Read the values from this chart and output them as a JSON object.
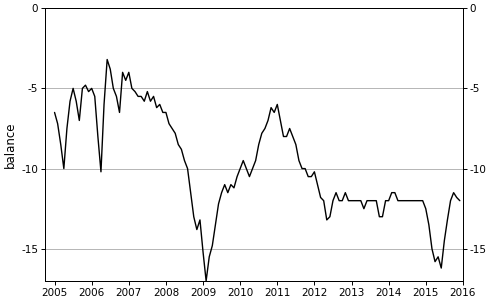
{
  "title": "",
  "ylabel_left": "balance",
  "ylim": [
    -17,
    0
  ],
  "yticks": [
    0,
    -5,
    -10,
    -15
  ],
  "xlim_start": 2004.75,
  "xlim_end": 2016.0,
  "xticks": [
    2005,
    2006,
    2007,
    2008,
    2009,
    2010,
    2011,
    2012,
    2013,
    2014,
    2015,
    2016
  ],
  "line_color": "#000000",
  "line_width": 1.0,
  "bg_color": "#ffffff",
  "grid_color": "#aaaaaa",
  "dates": [
    2005.0,
    2005.083,
    2005.167,
    2005.25,
    2005.333,
    2005.417,
    2005.5,
    2005.583,
    2005.667,
    2005.75,
    2005.833,
    2005.917,
    2006.0,
    2006.083,
    2006.167,
    2006.25,
    2006.333,
    2006.417,
    2006.5,
    2006.583,
    2006.667,
    2006.75,
    2006.833,
    2006.917,
    2007.0,
    2007.083,
    2007.167,
    2007.25,
    2007.333,
    2007.417,
    2007.5,
    2007.583,
    2007.667,
    2007.75,
    2007.833,
    2007.917,
    2008.0,
    2008.083,
    2008.167,
    2008.25,
    2008.333,
    2008.417,
    2008.5,
    2008.583,
    2008.667,
    2008.75,
    2008.833,
    2008.917,
    2009.0,
    2009.083,
    2009.167,
    2009.25,
    2009.333,
    2009.417,
    2009.5,
    2009.583,
    2009.667,
    2009.75,
    2009.833,
    2009.917,
    2010.0,
    2010.083,
    2010.167,
    2010.25,
    2010.333,
    2010.417,
    2010.5,
    2010.583,
    2010.667,
    2010.75,
    2010.833,
    2010.917,
    2011.0,
    2011.083,
    2011.167,
    2011.25,
    2011.333,
    2011.417,
    2011.5,
    2011.583,
    2011.667,
    2011.75,
    2011.833,
    2011.917,
    2012.0,
    2012.083,
    2012.167,
    2012.25,
    2012.333,
    2012.417,
    2012.5,
    2012.583,
    2012.667,
    2012.75,
    2012.833,
    2012.917,
    2013.0,
    2013.083,
    2013.167,
    2013.25,
    2013.333,
    2013.417,
    2013.5,
    2013.583,
    2013.667,
    2013.75,
    2013.833,
    2013.917,
    2014.0,
    2014.083,
    2014.167,
    2014.25,
    2014.333,
    2014.417,
    2014.5,
    2014.583,
    2014.667,
    2014.75,
    2014.833,
    2014.917,
    2015.0,
    2015.083,
    2015.167,
    2015.25,
    2015.333,
    2015.417,
    2015.5,
    2015.583,
    2015.667,
    2015.75,
    2015.833,
    2015.917
  ],
  "values": [
    -6.5,
    -7.2,
    -8.5,
    -10.0,
    -7.5,
    -5.8,
    -5.0,
    -5.8,
    -7.0,
    -5.0,
    -4.8,
    -5.2,
    -5.0,
    -5.5,
    -8.0,
    -10.2,
    -6.0,
    -3.2,
    -3.8,
    -5.0,
    -5.5,
    -6.5,
    -4.0,
    -4.5,
    -4.0,
    -5.0,
    -5.2,
    -5.5,
    -5.5,
    -5.8,
    -5.2,
    -5.8,
    -5.5,
    -6.2,
    -6.0,
    -6.5,
    -6.5,
    -7.2,
    -7.5,
    -7.8,
    -8.5,
    -8.8,
    -9.5,
    -10.0,
    -11.5,
    -13.0,
    -13.8,
    -13.2,
    -15.2,
    -17.0,
    -15.5,
    -14.8,
    -13.5,
    -12.2,
    -11.5,
    -11.0,
    -11.5,
    -11.0,
    -11.2,
    -10.5,
    -10.0,
    -9.5,
    -10.0,
    -10.5,
    -10.0,
    -9.5,
    -8.5,
    -7.8,
    -7.5,
    -7.0,
    -6.2,
    -6.5,
    -6.0,
    -7.0,
    -8.0,
    -8.0,
    -7.5,
    -8.0,
    -8.5,
    -9.5,
    -10.0,
    -10.0,
    -10.5,
    -10.5,
    -10.2,
    -11.0,
    -11.8,
    -12.0,
    -13.2,
    -13.0,
    -12.0,
    -11.5,
    -12.0,
    -12.0,
    -11.5,
    -12.0,
    -12.0,
    -12.0,
    -12.0,
    -12.0,
    -12.5,
    -12.0,
    -12.0,
    -12.0,
    -12.0,
    -13.0,
    -13.0,
    -12.0,
    -12.0,
    -11.5,
    -11.5,
    -12.0,
    -12.0,
    -12.0,
    -12.0,
    -12.0,
    -12.0,
    -12.0,
    -12.0,
    -12.0,
    -12.5,
    -13.5,
    -15.0,
    -15.8,
    -15.5,
    -16.2,
    -14.5,
    -13.2,
    -12.0,
    -11.5,
    -11.8,
    -12.0
  ]
}
